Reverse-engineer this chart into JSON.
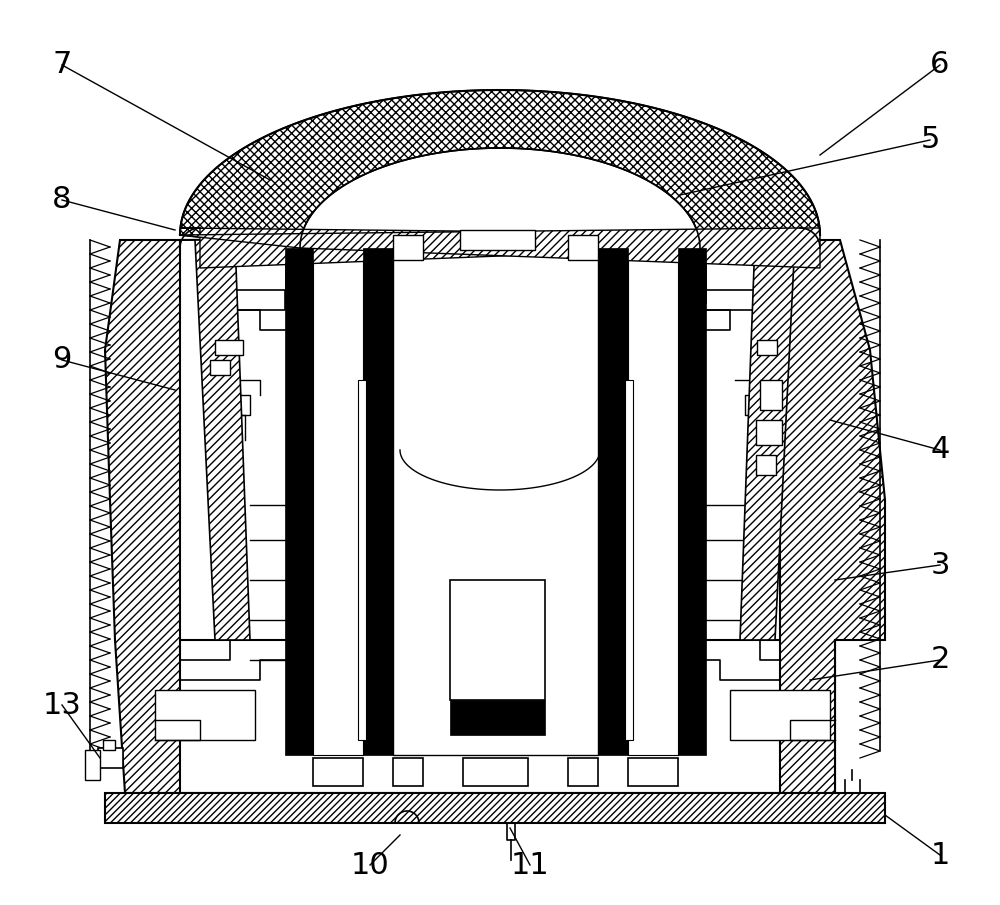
{
  "bg_color": "#ffffff",
  "figsize": [
    10.0,
    9.05
  ],
  "dpi": 100,
  "label_fontsize": 22,
  "label_specs": [
    [
      "1",
      940,
      855,
      885,
      815
    ],
    [
      "2",
      940,
      660,
      810,
      680
    ],
    [
      "3",
      940,
      565,
      835,
      580
    ],
    [
      "4",
      940,
      450,
      830,
      420
    ],
    [
      "5",
      930,
      140,
      680,
      195
    ],
    [
      "6",
      940,
      65,
      820,
      155
    ],
    [
      "7",
      62,
      65,
      270,
      180
    ],
    [
      "8",
      62,
      200,
      175,
      230
    ],
    [
      "9",
      62,
      360,
      175,
      390
    ],
    [
      "10",
      370,
      865,
      400,
      835
    ],
    [
      "11",
      530,
      865,
      510,
      828
    ],
    [
      "13",
      62,
      705,
      100,
      758
    ]
  ]
}
